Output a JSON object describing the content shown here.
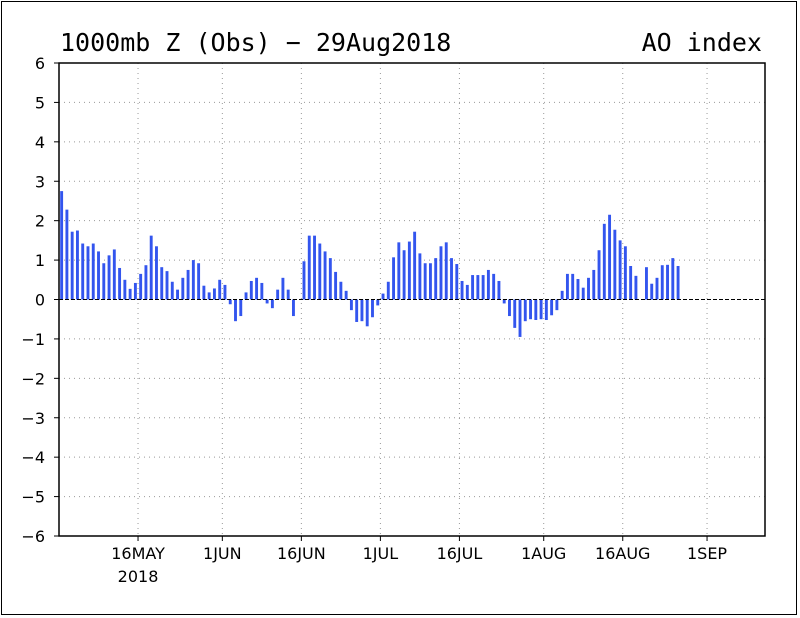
{
  "chart_data": {
    "type": "bar",
    "title": "1000mb Z (Obs) − 29Aug2018",
    "title_right": "AO index",
    "xlabel": "",
    "ylabel": "",
    "ylim": [
      -6,
      6
    ],
    "yticks": [
      6,
      5,
      4,
      3,
      2,
      1,
      0,
      -1,
      -2,
      -3,
      -4,
      -5,
      -6
    ],
    "ytick_labels": [
      "6",
      "5",
      "4",
      "3",
      "2",
      "1",
      "0",
      "−1",
      "−2",
      "−3",
      "−4",
      "−5",
      "−6"
    ],
    "x_range": [
      "2018-05-01",
      "2018-09-12"
    ],
    "x_ticks": [
      {
        "date": "2018-05-16",
        "label": "16MAY",
        "sublabel": "2018"
      },
      {
        "date": "2018-06-01",
        "label": "1JUN"
      },
      {
        "date": "2018-06-16",
        "label": "16JUN"
      },
      {
        "date": "2018-07-01",
        "label": "1JUL"
      },
      {
        "date": "2018-07-16",
        "label": "16JUL"
      },
      {
        "date": "2018-08-01",
        "label": "1AUG"
      },
      {
        "date": "2018-08-16",
        "label": "16AUG"
      },
      {
        "date": "2018-09-01",
        "label": "1SEP"
      }
    ],
    "grid": true,
    "bar_color": "#3355ee",
    "zero_line": "dashed",
    "series": [
      {
        "dates": [
          "2018-05-01",
          "2018-05-02",
          "2018-05-03",
          "2018-05-04",
          "2018-05-05",
          "2018-05-06",
          "2018-05-07",
          "2018-05-08",
          "2018-05-09",
          "2018-05-10",
          "2018-05-11",
          "2018-05-12",
          "2018-05-13",
          "2018-05-14",
          "2018-05-15",
          "2018-05-16",
          "2018-05-17",
          "2018-05-18",
          "2018-05-19",
          "2018-05-20",
          "2018-05-21",
          "2018-05-22",
          "2018-05-23",
          "2018-05-24",
          "2018-05-25",
          "2018-05-26",
          "2018-05-27",
          "2018-05-28",
          "2018-05-29",
          "2018-05-30",
          "2018-05-31",
          "2018-06-01",
          "2018-06-02",
          "2018-06-03",
          "2018-06-04",
          "2018-06-05",
          "2018-06-06",
          "2018-06-07",
          "2018-06-08",
          "2018-06-09",
          "2018-06-10",
          "2018-06-11",
          "2018-06-12",
          "2018-06-13",
          "2018-06-14",
          "2018-06-15",
          "2018-06-16",
          "2018-06-17",
          "2018-06-18",
          "2018-06-19",
          "2018-06-20",
          "2018-06-21",
          "2018-06-22",
          "2018-06-23",
          "2018-06-24",
          "2018-06-25",
          "2018-06-26",
          "2018-06-27",
          "2018-06-28",
          "2018-06-29",
          "2018-06-30",
          "2018-07-01",
          "2018-07-02",
          "2018-07-03",
          "2018-07-04",
          "2018-07-05",
          "2018-07-06",
          "2018-07-07",
          "2018-07-08",
          "2018-07-09",
          "2018-07-10",
          "2018-07-11",
          "2018-07-12",
          "2018-07-13",
          "2018-07-14",
          "2018-07-15",
          "2018-07-16",
          "2018-07-17",
          "2018-07-18",
          "2018-07-19",
          "2018-07-20",
          "2018-07-21",
          "2018-07-22",
          "2018-07-23",
          "2018-07-24",
          "2018-07-25",
          "2018-07-26",
          "2018-07-27",
          "2018-07-28",
          "2018-07-29",
          "2018-07-30",
          "2018-07-31",
          "2018-08-01",
          "2018-08-02",
          "2018-08-03",
          "2018-08-04",
          "2018-08-05",
          "2018-08-06",
          "2018-08-07",
          "2018-08-08",
          "2018-08-09",
          "2018-08-10",
          "2018-08-11",
          "2018-08-12",
          "2018-08-13",
          "2018-08-14",
          "2018-08-15",
          "2018-08-16",
          "2018-08-17",
          "2018-08-18",
          "2018-08-19",
          "2018-08-20",
          "2018-08-21",
          "2018-08-22",
          "2018-08-23",
          "2018-08-24",
          "2018-08-25",
          "2018-08-26",
          "2018-08-27",
          "2018-08-28"
        ],
        "values": [
          2.75,
          2.28,
          1.72,
          1.75,
          1.42,
          1.35,
          1.42,
          1.22,
          0.92,
          1.12,
          1.27,
          0.8,
          0.5,
          0.27,
          0.42,
          0.65,
          0.87,
          1.62,
          1.35,
          0.82,
          0.72,
          0.45,
          0.25,
          0.55,
          0.75,
          1.0,
          0.92,
          0.35,
          0.18,
          0.28,
          0.5,
          0.37,
          -0.12,
          -0.55,
          -0.42,
          0.18,
          0.47,
          0.55,
          0.42,
          -0.1,
          -0.22,
          0.25,
          0.55,
          0.25,
          -0.42,
          0.0,
          0.97,
          1.62,
          1.62,
          1.42,
          1.22,
          1.05,
          0.7,
          0.45,
          0.22,
          -0.27,
          -0.57,
          -0.55,
          -0.68,
          -0.45,
          -0.15,
          0.15,
          0.45,
          1.07,
          1.45,
          1.25,
          1.47,
          1.72,
          1.17,
          0.92,
          0.92,
          1.05,
          1.35,
          1.45,
          1.05,
          0.9,
          0.47,
          0.37,
          0.62,
          0.62,
          0.62,
          0.75,
          0.65,
          0.47,
          -0.1,
          -0.42,
          -0.72,
          -0.95,
          -0.55,
          -0.5,
          -0.52,
          -0.5,
          -0.52,
          -0.4,
          -0.27,
          0.22,
          0.65,
          0.65,
          0.52,
          0.3,
          0.55,
          0.75,
          1.25,
          1.92,
          2.15,
          1.77,
          1.5,
          1.35,
          0.85,
          0.6,
          null,
          0.82,
          0.4,
          0.55,
          0.87,
          0.88,
          1.05,
          0.85,
          null,
          null
        ]
      }
    ]
  }
}
